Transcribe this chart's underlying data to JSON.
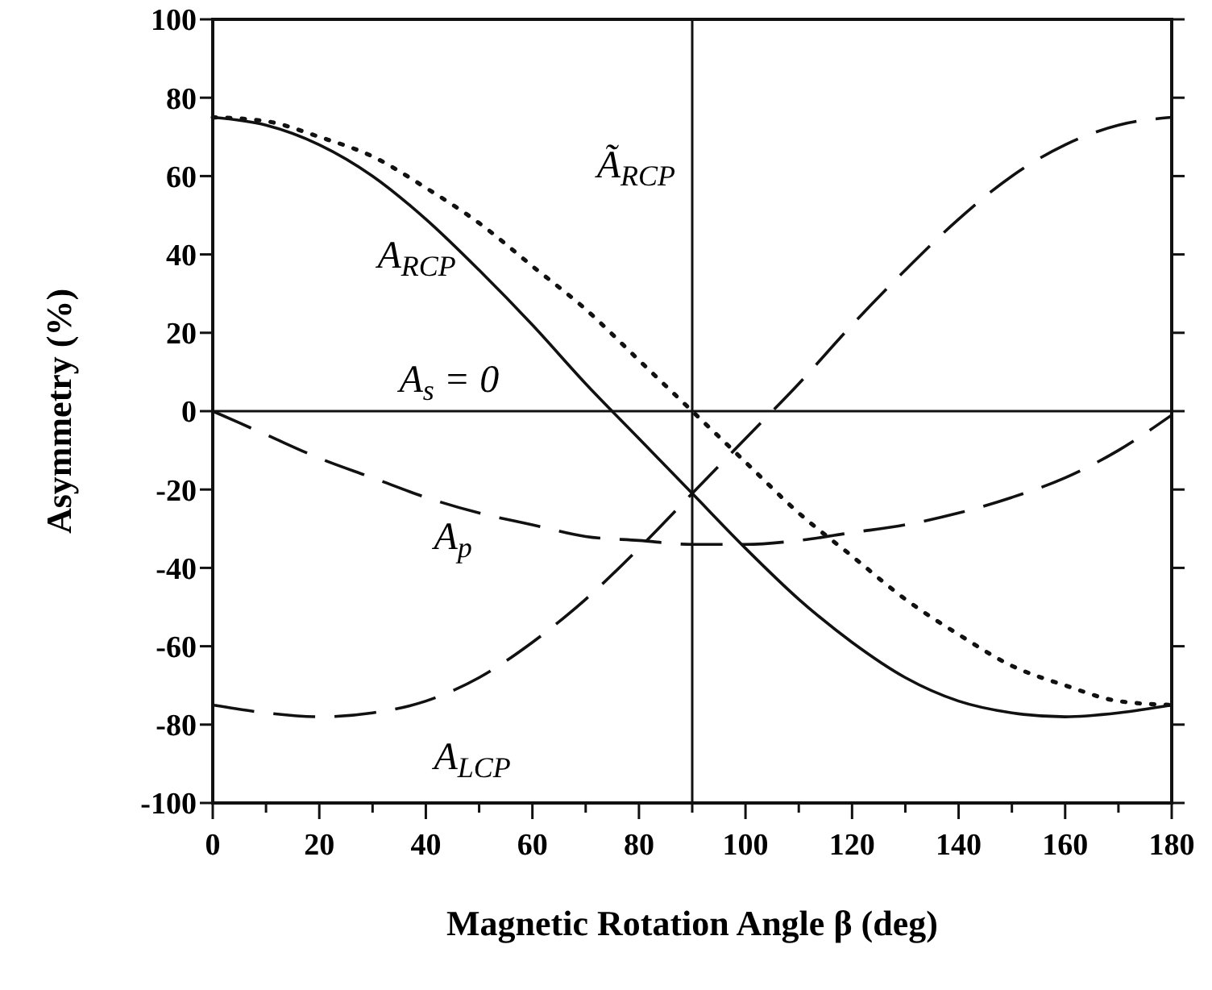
{
  "chart_data": {
    "type": "line",
    "xlabel": "Magnetic Rotation Angle β  (deg)",
    "ylabel": "Asymmetry (%)",
    "x": [
      0,
      10,
      20,
      30,
      40,
      50,
      60,
      70,
      80,
      90,
      100,
      110,
      120,
      130,
      140,
      150,
      160,
      170,
      180
    ],
    "xlim": [
      0,
      180
    ],
    "ylim": [
      -100,
      100
    ],
    "xticks": [
      0,
      {
        "value": 10,
        "label": null
      },
      20,
      {
        "value": 30,
        "label": null
      },
      40,
      {
        "value": 50,
        "label": null
      },
      60,
      {
        "value": 70,
        "label": null
      },
      80,
      {
        "value": 90,
        "label": null
      },
      100,
      {
        "value": 110,
        "label": null
      },
      120,
      {
        "value": 130,
        "label": null
      },
      140,
      {
        "value": 150,
        "label": null
      },
      160,
      {
        "value": 170,
        "label": null
      },
      180
    ],
    "yticks": [
      -100,
      -80,
      -60,
      -40,
      -20,
      0,
      20,
      40,
      60,
      80,
      100
    ],
    "grid": false,
    "marker": "none",
    "series": [
      {
        "name": "A$_{RCP}$",
        "color": "#111111",
        "line_style": "solid",
        "values": [
          75,
          73,
          68,
          60,
          49,
          36,
          22,
          7,
          -7,
          -21,
          -35,
          -48,
          -59,
          -68,
          -74,
          -77,
          -78,
          -77,
          -75
        ]
      },
      {
        "name": "Ã$_{RCP}$",
        "color": "#111111",
        "line_style": "dotted",
        "values": [
          75,
          74,
          70,
          65,
          57,
          48,
          37,
          26,
          13,
          0,
          -13,
          -26,
          -37,
          -48,
          -57,
          -65,
          -70,
          -74,
          -75
        ]
      },
      {
        "name": "A$_{p}$",
        "color": "#111111",
        "line_style": "dashed",
        "values": [
          0,
          -6,
          -12,
          -17,
          -22,
          -26,
          -29,
          -32,
          -33,
          -34,
          -34,
          -33,
          -31,
          -29,
          -26,
          -22,
          -17,
          -10,
          -1
        ]
      },
      {
        "name": "A$_{LCP}$",
        "color": "#111111",
        "line_style": "dashed",
        "values": [
          -75,
          -77,
          -78,
          -77,
          -74,
          -68,
          -59,
          -48,
          -35,
          -21,
          -7,
          7,
          22,
          36,
          49,
          60,
          68,
          73,
          75
        ]
      }
    ],
    "ref_lines": [
      {
        "axis": "y",
        "value": 0,
        "label": "A$_{s}$ = 0",
        "color": "#111111"
      },
      {
        "axis": "x",
        "value": 90,
        "color": "#111111"
      }
    ]
  }
}
